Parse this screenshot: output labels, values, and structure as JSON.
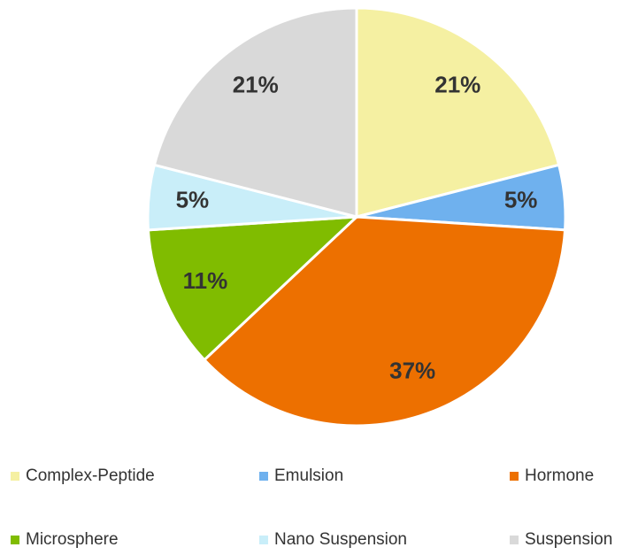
{
  "chart_data": {
    "type": "pie",
    "categories": [
      "Complex-Peptide",
      "Emulsion",
      "Hormone",
      "Microsphere",
      "Nano Suspension",
      "Suspension"
    ],
    "values": [
      21,
      5,
      37,
      11,
      5,
      21
    ],
    "value_labels": [
      "21%",
      "5%",
      "37%",
      "11%",
      "5%",
      "21%"
    ],
    "colors": [
      "#f5f0a2",
      "#6fb1ee",
      "#ed7000",
      "#80bc00",
      "#c9eef9",
      "#d9d9d9"
    ],
    "legend": "bottom"
  }
}
